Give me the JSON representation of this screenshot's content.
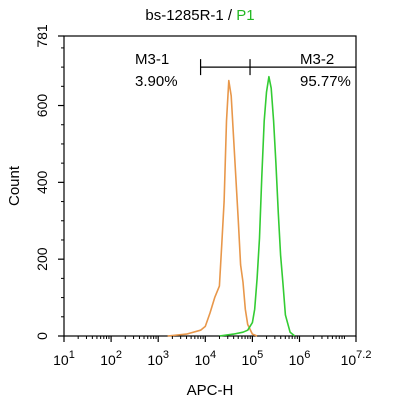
{
  "chart_data": {
    "type": "line",
    "title": {
      "sample": "bs-1285R-1",
      "separator": " / ",
      "gate": "P1",
      "gate_color": "#22b822"
    },
    "xlabel": "APC-H",
    "ylabel": "Count",
    "x_scale": "log10",
    "xlim_log10": [
      1,
      7.2
    ],
    "ylim": [
      0,
      781
    ],
    "x_ticks": [
      {
        "log": 1,
        "base": "10",
        "exp": "1"
      },
      {
        "log": 2,
        "base": "10",
        "exp": "2"
      },
      {
        "log": 3,
        "base": "10",
        "exp": "3"
      },
      {
        "log": 4,
        "base": "10",
        "exp": "4"
      },
      {
        "log": 5,
        "base": "10",
        "exp": "5"
      },
      {
        "log": 6,
        "base": "10",
        "exp": "6"
      },
      {
        "log": 7.2,
        "base": "10",
        "exp": "7.2"
      }
    ],
    "y_ticks": [
      0,
      200,
      400,
      600,
      781
    ],
    "grid": false,
    "series": [
      {
        "color": "#e8974a",
        "x_log10": [
          3.2,
          3.6,
          3.9,
          4.0,
          4.1,
          4.2,
          4.3,
          4.35,
          4.4,
          4.45,
          4.5,
          4.55,
          4.6,
          4.65,
          4.7,
          4.75,
          4.8,
          4.85,
          4.9,
          5.0,
          5.1
        ],
        "values": [
          0,
          5,
          15,
          25,
          60,
          100,
          130,
          240,
          350,
          560,
          665,
          625,
          520,
          410,
          300,
          185,
          140,
          70,
          30,
          5,
          0
        ]
      },
      {
        "color": "#33cc33",
        "x_log10": [
          4.3,
          4.6,
          4.8,
          4.9,
          5.0,
          5.05,
          5.1,
          5.15,
          5.2,
          5.25,
          5.3,
          5.35,
          5.4,
          5.45,
          5.5,
          5.55,
          5.6,
          5.65,
          5.7,
          5.8,
          5.9
        ],
        "values": [
          0,
          5,
          10,
          15,
          35,
          70,
          150,
          255,
          415,
          560,
          635,
          675,
          645,
          560,
          450,
          320,
          210,
          135,
          55,
          10,
          0
        ]
      }
    ],
    "markers": [
      {
        "label": "M3-1",
        "percent": "3.90%",
        "x_range_log10": [
          3.9,
          4.95
        ],
        "y": 700
      },
      {
        "label": "M3-2",
        "percent": "95.77%",
        "x_range_log10": [
          4.95,
          7.2
        ],
        "y": 700
      }
    ]
  }
}
